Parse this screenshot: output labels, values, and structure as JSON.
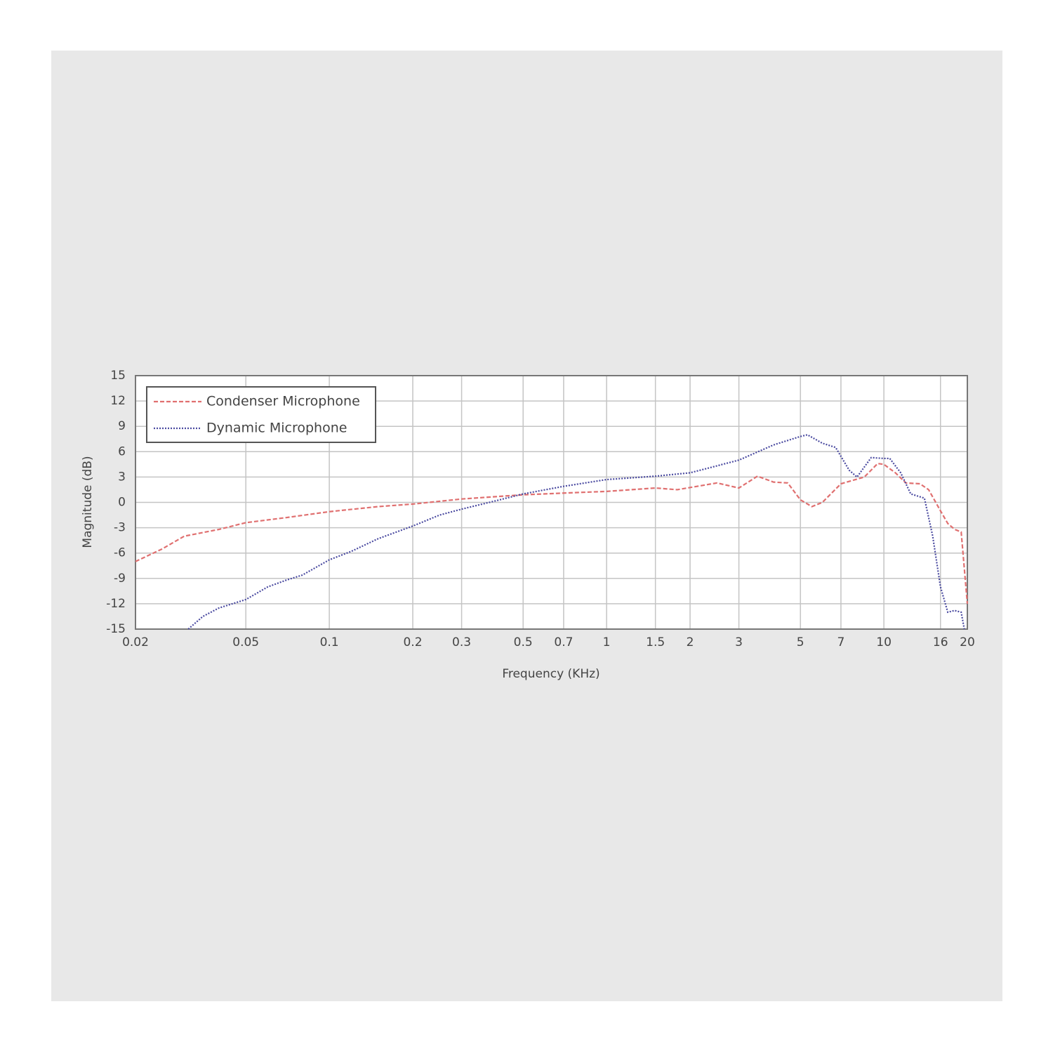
{
  "chart_data": {
    "type": "line",
    "x_label": "Frequency (KHz)",
    "y_label": "Magnitude (dB)",
    "xscale": "log",
    "xlim": [
      0.02,
      20
    ],
    "ylim": [
      -15,
      15
    ],
    "xticks": [
      0.02,
      0.05,
      0.1,
      0.2,
      0.3,
      0.5,
      0.7,
      1,
      1.5,
      2,
      3,
      5,
      7,
      10,
      16,
      20
    ],
    "yticks": [
      -15,
      -12,
      -9,
      -6,
      -3,
      0,
      3,
      6,
      9,
      12,
      15
    ],
    "grid": true,
    "legend": "upper left",
    "series": [
      {
        "name": "Condenser Microphone",
        "color": "#e07070",
        "dash": "dashed",
        "x": [
          0.02,
          0.025,
          0.03,
          0.04,
          0.05,
          0.07,
          0.1,
          0.15,
          0.2,
          0.3,
          0.5,
          0.7,
          1,
          1.5,
          1.8,
          2.5,
          3,
          3.5,
          4,
          4.5,
          5,
          5.5,
          6,
          7,
          8.5,
          9.5,
          10,
          11,
          12,
          13.5,
          14.5,
          16,
          17,
          18,
          19,
          20
        ],
        "values": [
          -7,
          -5.5,
          -4,
          -3.2,
          -2.4,
          -1.8,
          -1.1,
          -0.5,
          -0.2,
          0.4,
          0.9,
          1.1,
          1.3,
          1.7,
          1.5,
          2.3,
          1.7,
          3.1,
          2.4,
          2.3,
          0.3,
          -0.5,
          0,
          2.2,
          3,
          4.6,
          4.5,
          3.5,
          2.3,
          2.2,
          1.5,
          -1,
          -2.5,
          -3.2,
          -3.5,
          -12
        ]
      },
      {
        "name": "Dynamic Microphone",
        "color": "#4a4aa0",
        "dash": "dotted",
        "x": [
          0.031,
          0.035,
          0.04,
          0.05,
          0.06,
          0.07,
          0.08,
          0.1,
          0.12,
          0.15,
          0.2,
          0.25,
          0.3,
          0.4,
          0.5,
          0.7,
          1,
          1.5,
          2,
          3,
          4,
          5,
          5.3,
          6,
          6.7,
          7.5,
          8,
          9,
          10,
          10.5,
          11.5,
          12.5,
          14,
          15,
          16,
          17,
          18,
          19,
          19.5
        ],
        "values": [
          -15,
          -13.5,
          -12.5,
          -11.5,
          -10,
          -9.2,
          -8.6,
          -6.8,
          -5.8,
          -4.3,
          -2.8,
          -1.5,
          -0.8,
          0.2,
          1,
          1.9,
          2.7,
          3.1,
          3.5,
          5,
          6.8,
          7.8,
          8,
          7,
          6.5,
          3.8,
          3,
          5.3,
          5.2,
          5.2,
          3.5,
          1,
          0.5,
          -4,
          -10,
          -13,
          -12.8,
          -13,
          -15
        ]
      }
    ]
  }
}
